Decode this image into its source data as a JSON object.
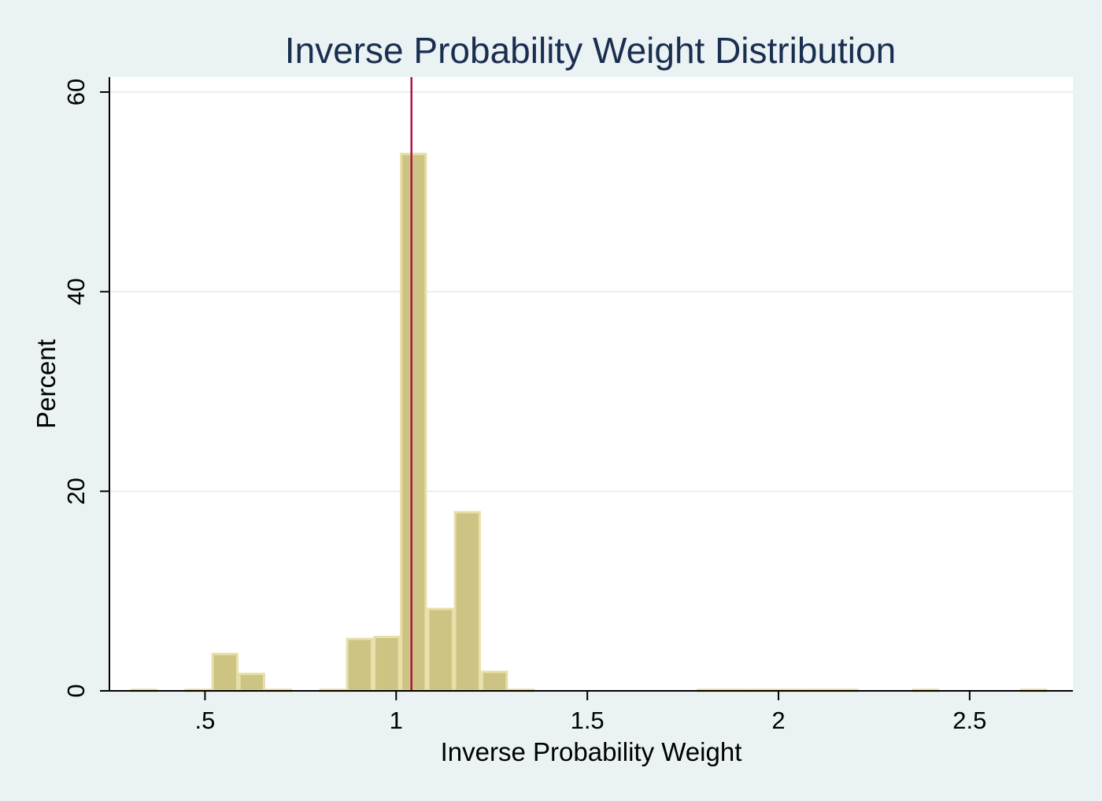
{
  "chart_data": {
    "type": "bar",
    "title": "Inverse Probability Weight Distribution",
    "xlabel": "Inverse Probability Weight",
    "ylabel": "Percent",
    "xlim": [
      0.25,
      2.77
    ],
    "ylim": [
      0,
      61.5
    ],
    "x_ticks": [
      0.5,
      1,
      1.5,
      2,
      2.5
    ],
    "x_tick_labels": [
      ".5",
      "1",
      "1.5",
      "2",
      "2.5"
    ],
    "y_ticks": [
      0,
      20,
      40,
      60
    ],
    "y_tick_labels": [
      "0",
      "20",
      "40",
      "60"
    ],
    "grid": true,
    "bin_width": 0.0705,
    "bins": [
      {
        "start": 0.305,
        "value": 0.1
      },
      {
        "start": 0.446,
        "value": 0.1
      },
      {
        "start": 0.517,
        "value": 3.7
      },
      {
        "start": 0.587,
        "value": 1.7
      },
      {
        "start": 0.658,
        "value": 0.1
      },
      {
        "start": 0.799,
        "value": 0.1
      },
      {
        "start": 0.869,
        "value": 5.2
      },
      {
        "start": 0.94,
        "value": 5.4
      },
      {
        "start": 1.01,
        "value": 53.8
      },
      {
        "start": 1.081,
        "value": 8.2
      },
      {
        "start": 1.151,
        "value": 17.9
      },
      {
        "start": 1.222,
        "value": 1.9
      },
      {
        "start": 1.292,
        "value": 0.1
      },
      {
        "start": 1.786,
        "value": 0.1
      },
      {
        "start": 1.856,
        "value": 0.1
      },
      {
        "start": 1.927,
        "value": 0.1
      },
      {
        "start": 1.997,
        "value": 0.1
      },
      {
        "start": 2.068,
        "value": 0.1
      },
      {
        "start": 2.138,
        "value": 0.1
      },
      {
        "start": 2.35,
        "value": 0.1
      },
      {
        "start": 2.632,
        "value": 0.1
      }
    ],
    "reference_line": {
      "x": 1.04
    },
    "colors": {
      "bar_fill": "#cdc483",
      "bar_outline": "#e6dfa8",
      "reference_line": "#b0124a",
      "plot_background": "#ffffff",
      "outer_background": "#eaf2f3",
      "grid": "#e6efef",
      "title": "#1a2e4f"
    }
  }
}
